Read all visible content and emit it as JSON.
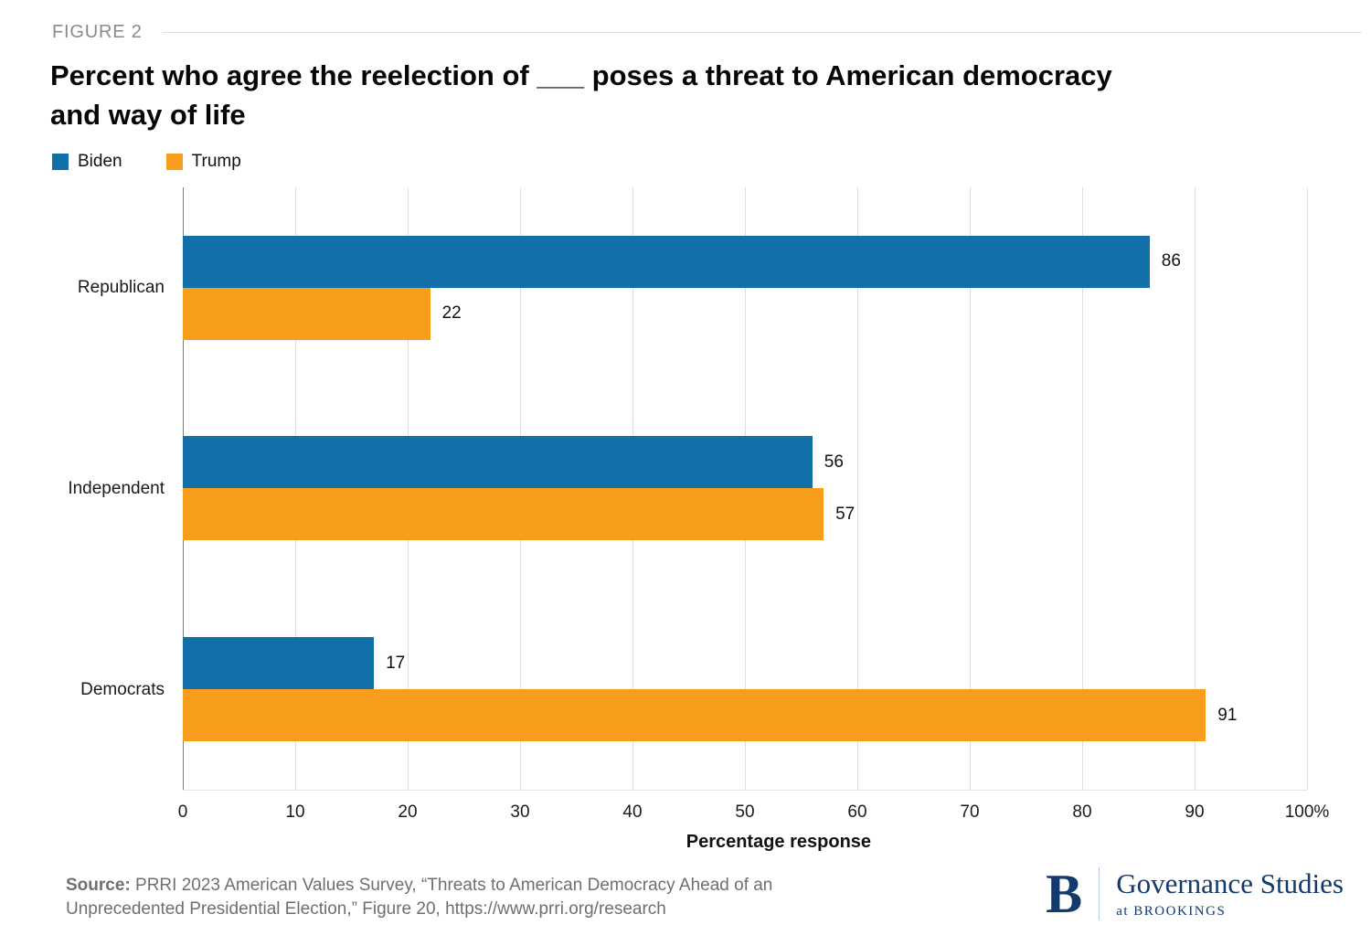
{
  "figure_label": "FIGURE 2",
  "title": "Percent who agree the reelection of ___ poses a threat to American democracy and way of life",
  "legend": [
    {
      "label": "Biden",
      "color": "#1170AA"
    },
    {
      "label": "Trump",
      "color": "#F99D1C"
    }
  ],
  "chart_data": {
    "type": "bar",
    "orientation": "horizontal",
    "title": "Percent who agree the reelection of ___ poses a threat to American democracy and way of life",
    "categories": [
      "Republican",
      "Independent",
      "Democrats"
    ],
    "series": [
      {
        "name": "Biden",
        "color": "#1170AA",
        "values": [
          86,
          56,
          17
        ]
      },
      {
        "name": "Trump",
        "color": "#F99D1C",
        "values": [
          22,
          57,
          91
        ]
      }
    ],
    "xlabel": "Percentage response",
    "ylabel": "",
    "xlim": [
      0,
      100
    ],
    "ticks": [
      0,
      10,
      20,
      30,
      40,
      50,
      60,
      70,
      80,
      90,
      100
    ],
    "tick_labels": [
      "0",
      "10",
      "20",
      "30",
      "40",
      "50",
      "60",
      "70",
      "80",
      "90",
      "100%"
    ],
    "grid": "vertical",
    "legend_position": "top-left",
    "value_labels": true
  },
  "source": {
    "prefix": "Source:",
    "line1": " PRRI 2023 American Values Survey, “Threats to American Democracy Ahead of an",
    "line2": "Unprecedented Presidential Election,” Figure 20, https://www.prri.org/research"
  },
  "logo": {
    "letter": "B",
    "name": "Governance Studies",
    "sub": "at BROOKINGS",
    "color": "#123A6D"
  }
}
